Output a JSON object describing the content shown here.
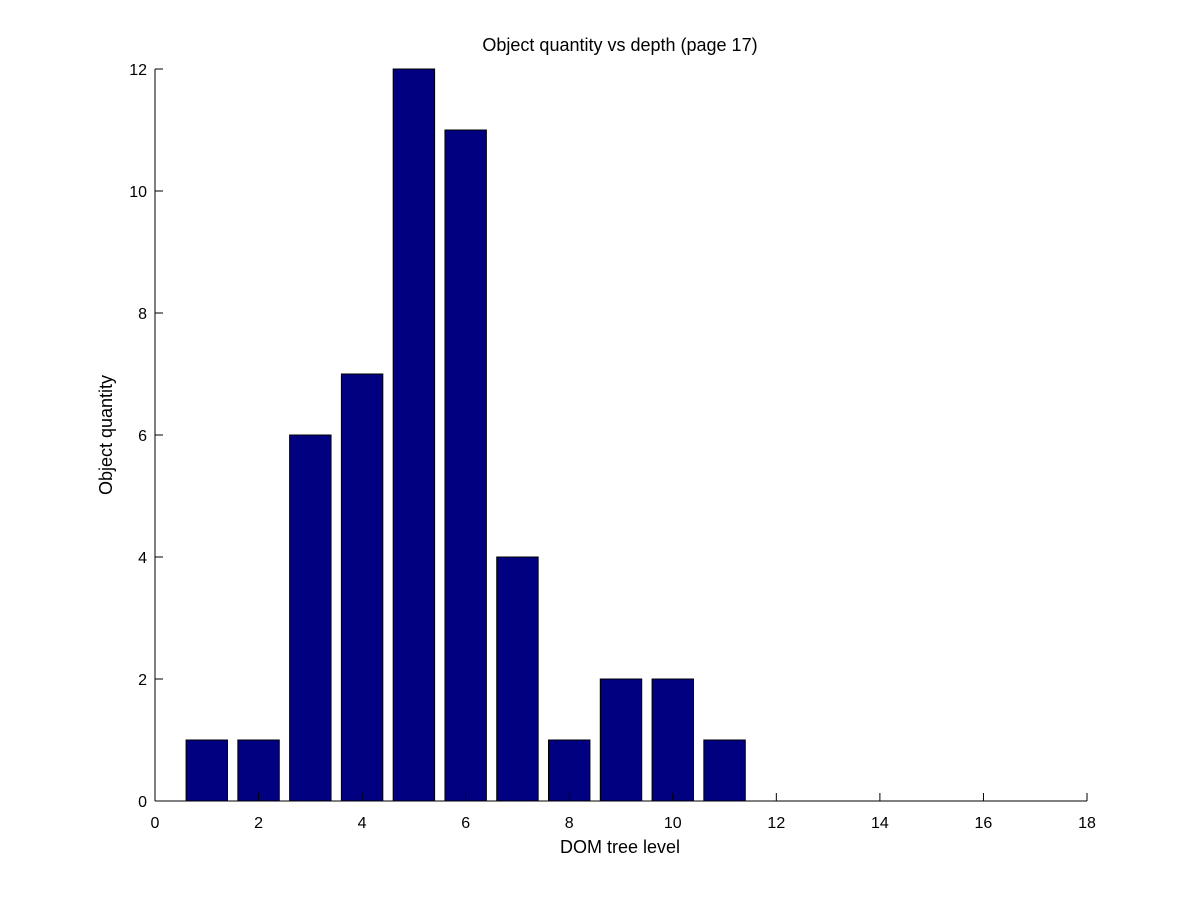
{
  "chart_data": {
    "type": "bar",
    "title": "Object quantity vs depth (page 17)",
    "xlabel": "DOM tree level",
    "ylabel": "Object quantity",
    "x": [
      1,
      2,
      3,
      4,
      5,
      6,
      7,
      8,
      9,
      10,
      11
    ],
    "values": [
      1,
      1,
      6,
      7,
      12,
      11,
      4,
      1,
      2,
      2,
      1
    ],
    "xlim": [
      0,
      18
    ],
    "ylim": [
      0,
      12
    ],
    "xticks": [
      0,
      2,
      4,
      6,
      8,
      10,
      12,
      14,
      16,
      18
    ],
    "yticks": [
      0,
      2,
      4,
      6,
      8,
      10,
      12
    ],
    "bar_width": 0.8,
    "grid": false,
    "colors": {
      "bar_fill": "#000080",
      "bar_edge": "#000000",
      "axis": "#000000"
    }
  }
}
